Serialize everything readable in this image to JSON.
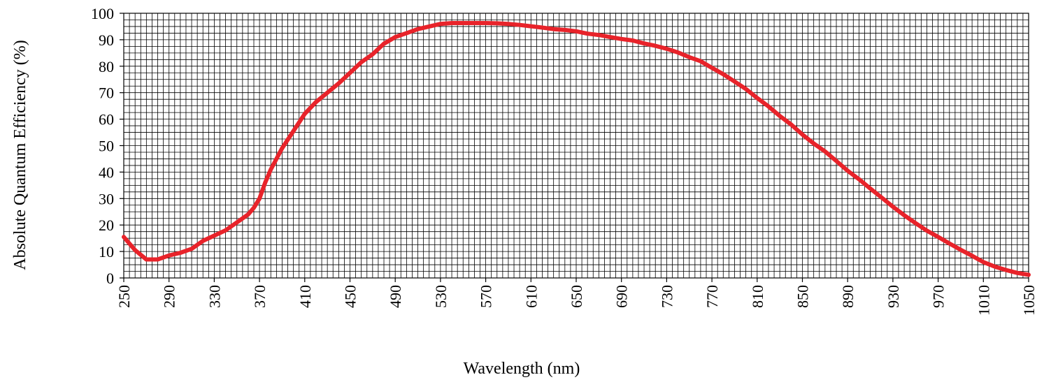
{
  "chart_data": {
    "type": "line",
    "title": "",
    "xlabel": "Wavelength (nm)",
    "ylabel": "Absolute Quantum Efficiency (%)",
    "xlim": [
      250,
      1050
    ],
    "ylim": [
      0,
      100
    ],
    "x_tick_labels": [
      "250",
      "290",
      "330",
      "370",
      "410",
      "450",
      "490",
      "530",
      "570",
      "610",
      "650",
      "690",
      "730",
      "770",
      "810",
      "850",
      "890",
      "930",
      "970",
      "1010",
      "1050"
    ],
    "y_tick_labels": [
      "0",
      "10",
      "20",
      "30",
      "40",
      "50",
      "60",
      "70",
      "80",
      "90",
      "100"
    ],
    "grid": true,
    "legend": "none",
    "series": [
      {
        "color": "#e8232a",
        "x": [
          250,
          260,
          270,
          280,
          290,
          300,
          310,
          320,
          330,
          340,
          350,
          360,
          365,
          370,
          375,
          380,
          390,
          400,
          410,
          420,
          430,
          440,
          450,
          460,
          470,
          480,
          490,
          500,
          510,
          520,
          530,
          540,
          550,
          560,
          570,
          580,
          590,
          600,
          610,
          620,
          630,
          640,
          650,
          660,
          670,
          680,
          690,
          700,
          710,
          720,
          730,
          740,
          750,
          760,
          770,
          780,
          790,
          800,
          810,
          820,
          830,
          840,
          850,
          860,
          870,
          880,
          890,
          900,
          910,
          920,
          930,
          940,
          950,
          960,
          970,
          980,
          990,
          1000,
          1010,
          1020,
          1030,
          1040,
          1050
        ],
        "y": [
          15.5,
          10.5,
          7,
          7,
          8.5,
          9.5,
          11,
          14,
          16,
          18,
          21,
          24,
          26.5,
          30,
          36,
          41,
          49,
          55.5,
          62,
          66.5,
          70,
          73.5,
          77.5,
          81.5,
          84.5,
          88.5,
          91,
          92.5,
          94,
          95,
          96,
          96.3,
          96.3,
          96.3,
          96.3,
          96.2,
          96,
          95.6,
          95.1,
          94.6,
          94,
          93.7,
          93.2,
          92.3,
          91.8,
          91,
          90.3,
          89.7,
          88.6,
          87.7,
          86.6,
          85.2,
          83.4,
          81.9,
          79.4,
          77,
          74.2,
          71.4,
          68,
          64.8,
          61.2,
          58,
          54.2,
          50.8,
          47.8,
          44.2,
          40.5,
          37.3,
          33.8,
          30.4,
          26.9,
          23.7,
          20.7,
          17.9,
          15.5,
          13,
          10.6,
          8.4,
          6,
          4.3,
          3,
          1.9,
          1.2
        ]
      }
    ]
  }
}
